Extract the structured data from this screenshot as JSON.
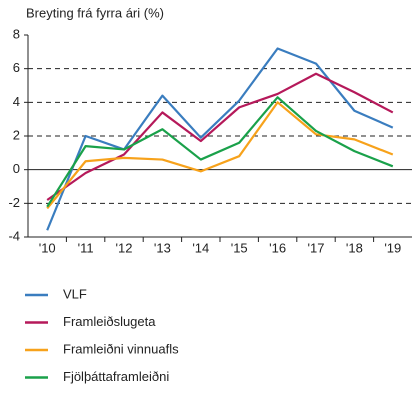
{
  "chart_data": {
    "type": "line",
    "y_axis_label": "Breyting frá fyrra ári (%)",
    "categories": [
      "'10",
      "'11",
      "'12",
      "'13",
      "'14",
      "'15",
      "'16",
      "'17",
      "'18",
      "'19"
    ],
    "series": [
      {
        "name": "VLF",
        "color": "#3a7dbf",
        "values": [
          -3.6,
          2.0,
          1.2,
          4.4,
          1.9,
          4.1,
          7.2,
          6.3,
          3.5,
          2.5
        ]
      },
      {
        "name": "Framleiðslugeta",
        "color": "#b5195a",
        "values": [
          -1.8,
          -0.2,
          0.9,
          3.4,
          1.7,
          3.7,
          4.5,
          5.7,
          4.6,
          3.4
        ]
      },
      {
        "name": "Framleiðni vinnuafls",
        "color": "#f7a21b",
        "values": [
          -2.3,
          0.5,
          0.7,
          0.6,
          -0.1,
          0.8,
          4.0,
          2.1,
          1.8,
          0.9
        ]
      },
      {
        "name": "Fjölþáttaframleiðni",
        "color": "#1aa14a",
        "values": [
          -2.2,
          1.4,
          1.2,
          2.4,
          0.6,
          1.6,
          4.3,
          2.3,
          1.1,
          0.2
        ]
      }
    ],
    "ylim": [
      -4,
      8
    ],
    "yticks": [
      -4,
      -2,
      0,
      2,
      4,
      6,
      8
    ],
    "grid": true
  }
}
